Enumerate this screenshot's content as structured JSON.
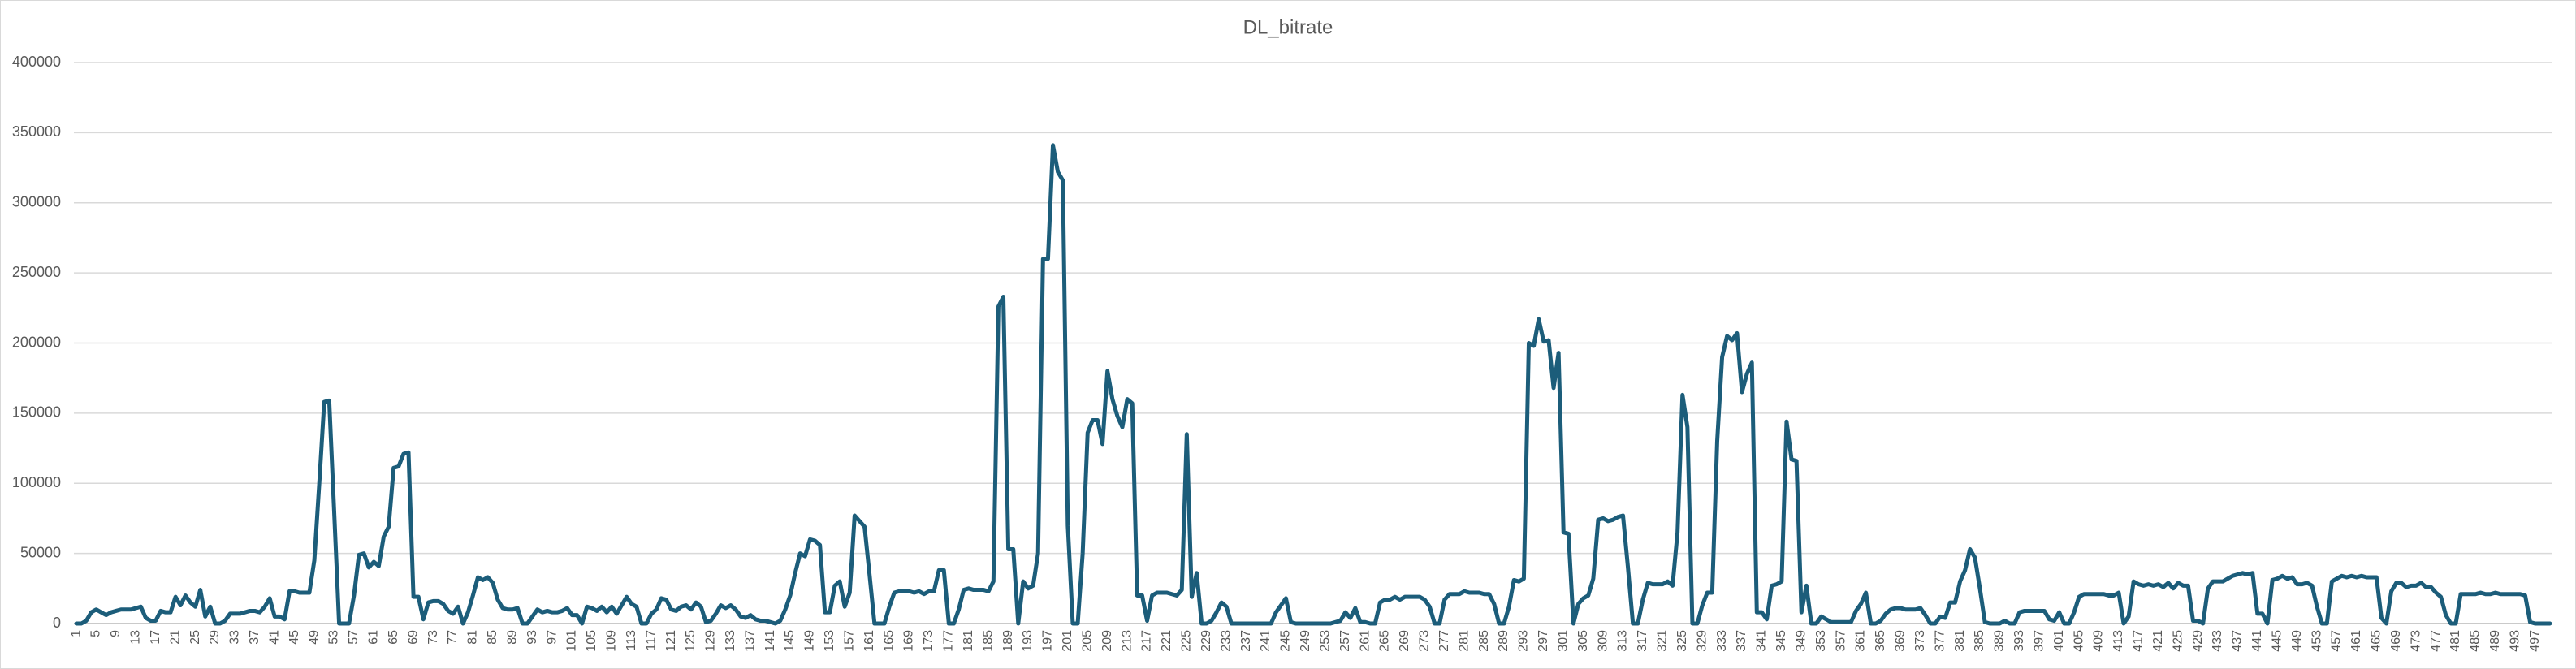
{
  "chart_data": {
    "type": "line",
    "title": "DL_bitrate",
    "categories": [
      1,
      null,
      null,
      null,
      5,
      null,
      null,
      null,
      9,
      null,
      null,
      null,
      13,
      null,
      null,
      null,
      17,
      null,
      null,
      null,
      21,
      null,
      null,
      null,
      25,
      null,
      null,
      null,
      29,
      null,
      null,
      null,
      33,
      null,
      null,
      null,
      37,
      null,
      null,
      null,
      41,
      null,
      null,
      null,
      45,
      null,
      null,
      null,
      49,
      null,
      null,
      null,
      53,
      null,
      null,
      null,
      57,
      null,
      null,
      null,
      61,
      null,
      null,
      null,
      65,
      null,
      null,
      null,
      69,
      null,
      null,
      null,
      73,
      null,
      null,
      null,
      77,
      null,
      null,
      null,
      81,
      null,
      null,
      null,
      85,
      null,
      null,
      null,
      89,
      null,
      null,
      null,
      93,
      null,
      null,
      null,
      97,
      null,
      null,
      null,
      101,
      null,
      null,
      null,
      105,
      null,
      null,
      null,
      109,
      null,
      null,
      null,
      113,
      null,
      null,
      null,
      117,
      null,
      null,
      null,
      121,
      null,
      null,
      null,
      125,
      null,
      null,
      null,
      129,
      null,
      null,
      null,
      133,
      null,
      null,
      null,
      137,
      null,
      null,
      null,
      141,
      null,
      null,
      null,
      145,
      null,
      null,
      null,
      149,
      null,
      null,
      null,
      153,
      null,
      null,
      null,
      157,
      null,
      null,
      null,
      161,
      null,
      null,
      null,
      165,
      null,
      null,
      null,
      169,
      null,
      null,
      null,
      173,
      null,
      null,
      null,
      177,
      null,
      null,
      null,
      181,
      null,
      null,
      null,
      185,
      null,
      null,
      null,
      189,
      null,
      null,
      null,
      193,
      null,
      null,
      null,
      197,
      null,
      null,
      null,
      201,
      null,
      null,
      null,
      205,
      null,
      null,
      null,
      209,
      null,
      null,
      null,
      213,
      null,
      null,
      null,
      217,
      null,
      null,
      null,
      221,
      null,
      null,
      null,
      225,
      null,
      null,
      null,
      229,
      null,
      null,
      null,
      233,
      null,
      null,
      null,
      237,
      null,
      null,
      null,
      241,
      null,
      null,
      null,
      245,
      null,
      null,
      null,
      249,
      null,
      null,
      null,
      253,
      null,
      null,
      null,
      257,
      null,
      null,
      null,
      261,
      null,
      null,
      null,
      265,
      null,
      null,
      null,
      269,
      null,
      null,
      null,
      273,
      null,
      null,
      null,
      277,
      null,
      null,
      null,
      281,
      null,
      null,
      null,
      285,
      null,
      null,
      null,
      289,
      null,
      null,
      null,
      293,
      null,
      null,
      null,
      297,
      null,
      null,
      null,
      301,
      null,
      null,
      null,
      305,
      null,
      null,
      null,
      309,
      null,
      null,
      null,
      313,
      null,
      null,
      null,
      317,
      null,
      null,
      null,
      321,
      null,
      null,
      null,
      325,
      null,
      null,
      null,
      329,
      null,
      null,
      null,
      333,
      null,
      null,
      null,
      337,
      null,
      null,
      null,
      341,
      null,
      null,
      null,
      345,
      null,
      null,
      null,
      349,
      null,
      null,
      null,
      353,
      null,
      null,
      null,
      357,
      null,
      null,
      null,
      361,
      null,
      null,
      null,
      365,
      null,
      null,
      null,
      369,
      null,
      null,
      null,
      373,
      null,
      null,
      null,
      377,
      null,
      null,
      null,
      381,
      null,
      null,
      null,
      385,
      null,
      null,
      null,
      389,
      null,
      null,
      null,
      393,
      null,
      null,
      null,
      397,
      null,
      null,
      null,
      401,
      null,
      null,
      null,
      405,
      null,
      null,
      null,
      409,
      null,
      null,
      null,
      413,
      null,
      null,
      null,
      417,
      null,
      null,
      null,
      421,
      null,
      null,
      null,
      425,
      null,
      null,
      null,
      429,
      null,
      null,
      null,
      433,
      null,
      null,
      null,
      437,
      null,
      null,
      null,
      441,
      null,
      null,
      null,
      445,
      null,
      null,
      null,
      449,
      null,
      null,
      null,
      453,
      null,
      null,
      null,
      457,
      null,
      null,
      null,
      461,
      null,
      null,
      null,
      465,
      null,
      null,
      null,
      469,
      null,
      null,
      null,
      473,
      null,
      null,
      null,
      477,
      null,
      null,
      null,
      481,
      null,
      null,
      null,
      485,
      null,
      null,
      null,
      489,
      null,
      null,
      null,
      493,
      null,
      null,
      null,
      497,
      null,
      null,
      null
    ],
    "values": [
      0,
      0,
      2000,
      8000,
      10000,
      8000,
      6000,
      8000,
      9000,
      10000,
      10000,
      10000,
      11000,
      12000,
      4000,
      2000,
      2000,
      9000,
      8000,
      8000,
      19000,
      13000,
      20000,
      15000,
      12000,
      24000,
      5000,
      12000,
      0,
      0,
      2000,
      7000,
      7000,
      7000,
      8000,
      9000,
      9000,
      8000,
      12000,
      18000,
      5000,
      5000,
      3000,
      23000,
      23000,
      22000,
      22000,
      22000,
      45000,
      100000,
      158000,
      159000,
      80000,
      0,
      0,
      0,
      20000,
      49000,
      50000,
      40000,
      44000,
      41000,
      62000,
      69000,
      111000,
      112000,
      121000,
      122000,
      19000,
      19000,
      3000,
      15000,
      16000,
      16000,
      14000,
      9000,
      7000,
      12000,
      0,
      8000,
      20000,
      33000,
      31000,
      33000,
      29000,
      17000,
      11000,
      10000,
      10000,
      11000,
      0,
      0,
      5000,
      10000,
      8000,
      9000,
      8000,
      8000,
      9000,
      11000,
      6000,
      6000,
      0,
      12000,
      11000,
      9000,
      12000,
      8000,
      12000,
      7000,
      13000,
      19000,
      14000,
      12000,
      0,
      0,
      7000,
      10000,
      18000,
      17000,
      10000,
      9000,
      12000,
      13000,
      10000,
      15000,
      12000,
      1000,
      2000,
      7000,
      13000,
      11000,
      13000,
      10000,
      5000,
      4000,
      6000,
      3000,
      2000,
      2000,
      1000,
      0,
      2000,
      10000,
      20000,
      36000,
      50000,
      48000,
      60000,
      59000,
      56000,
      8000,
      8000,
      27000,
      30000,
      12000,
      22000,
      77000,
      73000,
      69000,
      35000,
      0,
      0,
      0,
      12000,
      22000,
      23000,
      23000,
      23000,
      22000,
      23000,
      21000,
      23000,
      23000,
      38000,
      38000,
      0,
      0,
      10000,
      24000,
      25000,
      24000,
      24000,
      24000,
      23000,
      30000,
      226000,
      233000,
      53000,
      53000,
      0,
      30000,
      25000,
      27000,
      50000,
      260000,
      260000,
      341000,
      322000,
      316000,
      70000,
      0,
      0,
      50000,
      136000,
      145000,
      145000,
      128000,
      180000,
      160000,
      148000,
      140000,
      160000,
      157000,
      20000,
      20000,
      2000,
      20000,
      22000,
      22000,
      22000,
      21000,
      20000,
      24000,
      135000,
      19000,
      36000,
      0,
      0,
      2000,
      8000,
      15000,
      12000,
      0,
      0,
      0,
      0,
      0,
      0,
      0,
      0,
      0,
      8000,
      13000,
      18000,
      1000,
      0,
      0,
      0,
      0,
      0,
      0,
      0,
      0,
      1000,
      2000,
      8000,
      4000,
      11000,
      1000,
      1000,
      0,
      0,
      15000,
      17000,
      17000,
      19000,
      17000,
      19000,
      19000,
      19000,
      19000,
      17000,
      12000,
      0,
      0,
      17000,
      21000,
      21000,
      21000,
      23000,
      22000,
      22000,
      22000,
      21000,
      21000,
      14000,
      0,
      0,
      12000,
      31000,
      30000,
      32000,
      200000,
      198000,
      217000,
      201000,
      202000,
      168000,
      193000,
      65000,
      64000,
      0,
      14000,
      18000,
      20000,
      32000,
      74000,
      75000,
      73000,
      74000,
      76000,
      77000,
      40000,
      0,
      0,
      17000,
      29000,
      28000,
      28000,
      28000,
      30000,
      27000,
      65000,
      163000,
      140000,
      0,
      0,
      13000,
      22000,
      22000,
      130000,
      190000,
      205000,
      202000,
      207000,
      165000,
      178000,
      186000,
      8000,
      8000,
      3000,
      27000,
      28000,
      30000,
      144000,
      117000,
      116000,
      8000,
      27000,
      0,
      0,
      5000,
      3000,
      1000,
      1000,
      1000,
      1000,
      1000,
      9000,
      14000,
      22000,
      0,
      0,
      2000,
      7000,
      10000,
      11000,
      11000,
      10000,
      10000,
      10000,
      11000,
      6000,
      0,
      0,
      5000,
      4000,
      15000,
      15000,
      30000,
      38000,
      53000,
      47000,
      25000,
      1000,
      0,
      0,
      0,
      2000,
      0,
      0,
      8000,
      9000,
      9000,
      9000,
      9000,
      9000,
      3000,
      2000,
      8000,
      0,
      0,
      8000,
      19000,
      21000,
      21000,
      21000,
      21000,
      21000,
      20000,
      20000,
      22000,
      0,
      5000,
      30000,
      28000,
      27000,
      28000,
      27000,
      28000,
      26000,
      29000,
      25000,
      29000,
      27000,
      27000,
      2000,
      2000,
      0,
      25000,
      30000,
      30000,
      30000,
      32000,
      34000,
      35000,
      36000,
      35000,
      36000,
      7000,
      7000,
      0,
      31000,
      32000,
      34000,
      32000,
      33000,
      28000,
      28000,
      29000,
      27000,
      12000,
      0,
      0,
      30000,
      32000,
      34000,
      33000,
      34000,
      33000,
      34000,
      33000,
      33000,
      33000,
      4000,
      0,
      23000,
      29000,
      29000,
      26000,
      27000,
      27000,
      29000,
      26000,
      26000,
      22000,
      19000,
      6000,
      0,
      0,
      21000,
      21000,
      21000,
      21000,
      22000,
      21000,
      21000,
      22000,
      21000,
      21000,
      21000,
      21000,
      21000,
      20000,
      1000,
      0,
      0,
      0,
      0
    ],
    "color": "#1c5d7a",
    "ylim": [
      0,
      400000
    ],
    "yticks": [
      0,
      50000,
      100000,
      150000,
      200000,
      250000,
      300000,
      350000,
      400000
    ],
    "grid": true
  }
}
